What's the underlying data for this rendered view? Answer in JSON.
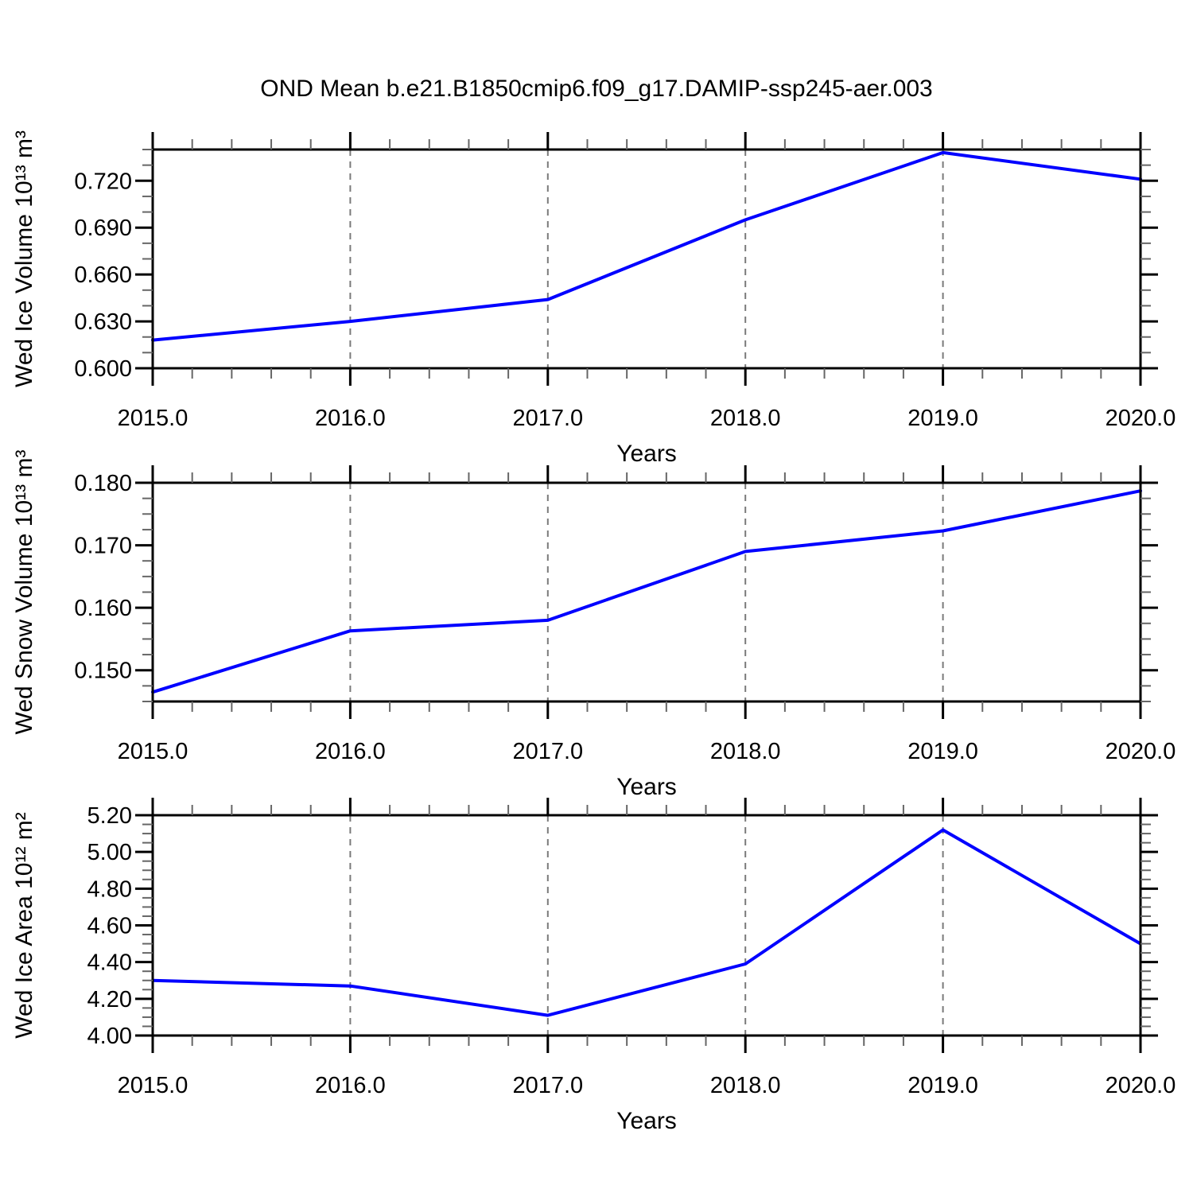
{
  "page": {
    "title": "OND Mean b.e21.B1850cmip6.f09_g17.DAMIP-ssp245-aer.003",
    "background_color": "#ffffff"
  },
  "style": {
    "line_color": "#0000ff",
    "frame_color": "#000000",
    "major_tick_color": "#000000",
    "minor_tick_color": "#666666",
    "gridline_color": "#7a7a7a",
    "text_color": "#000000"
  },
  "chart_data": [
    {
      "id": "wed-ice-volume",
      "type": "line",
      "ylabel": "Wed Ice Volume 10¹³ m³",
      "xlabel": "Years",
      "x": [
        2015.0,
        2016.0,
        2017.0,
        2018.0,
        2019.0,
        2020.0
      ],
      "values": [
        0.618,
        0.63,
        0.644,
        0.695,
        0.738,
        0.721
      ],
      "xlim": [
        2015.0,
        2020.0
      ],
      "ylim": [
        0.6,
        0.74
      ],
      "xticks": [
        2015.0,
        2016.0,
        2017.0,
        2018.0,
        2019.0,
        2020.0
      ],
      "xtick_labels": [
        "2015.0",
        "2016.0",
        "2017.0",
        "2018.0",
        "2019.0",
        "2020.0"
      ],
      "x_minor_step": 0.2,
      "yticks": [
        0.6,
        0.63,
        0.66,
        0.69,
        0.72
      ],
      "ytick_labels": [
        "0.600",
        "0.630",
        "0.660",
        "0.690",
        "0.720"
      ],
      "y_minor_step": 0.01,
      "grid_x_dashed": [
        2016.0,
        2017.0,
        2018.0,
        2019.0
      ],
      "legend": "none"
    },
    {
      "id": "wed-snow-volume",
      "type": "line",
      "ylabel": "Wed Snow Volume 10¹³ m³",
      "xlabel": "Years",
      "x": [
        2015.0,
        2016.0,
        2017.0,
        2018.0,
        2019.0,
        2020.0
      ],
      "values": [
        0.1465,
        0.1563,
        0.158,
        0.169,
        0.1723,
        0.1787
      ],
      "xlim": [
        2015.0,
        2020.0
      ],
      "ylim": [
        0.145,
        0.18
      ],
      "xticks": [
        2015.0,
        2016.0,
        2017.0,
        2018.0,
        2019.0,
        2020.0
      ],
      "xtick_labels": [
        "2015.0",
        "2016.0",
        "2017.0",
        "2018.0",
        "2019.0",
        "2020.0"
      ],
      "x_minor_step": 0.2,
      "yticks": [
        0.15,
        0.16,
        0.17,
        0.18
      ],
      "ytick_labels": [
        "0.150",
        "0.160",
        "0.170",
        "0.180"
      ],
      "y_minor_step": 0.0025,
      "grid_x_dashed": [
        2016.0,
        2017.0,
        2018.0,
        2019.0
      ],
      "legend": "none"
    },
    {
      "id": "wed-ice-area",
      "type": "line",
      "ylabel": "Wed Ice Area 10¹² m²",
      "xlabel": "Years",
      "x": [
        2015.0,
        2016.0,
        2017.0,
        2018.0,
        2019.0,
        2020.0
      ],
      "values": [
        4.3,
        4.27,
        4.11,
        4.39,
        5.12,
        4.5
      ],
      "xlim": [
        2015.0,
        2020.0
      ],
      "ylim": [
        4.0,
        5.2
      ],
      "xticks": [
        2015.0,
        2016.0,
        2017.0,
        2018.0,
        2019.0,
        2020.0
      ],
      "xtick_labels": [
        "2015.0",
        "2016.0",
        "2017.0",
        "2018.0",
        "2019.0",
        "2020.0"
      ],
      "x_minor_step": 0.2,
      "yticks": [
        4.0,
        4.2,
        4.4,
        4.6,
        4.8,
        5.0,
        5.2
      ],
      "ytick_labels": [
        "4.00",
        "4.20",
        "4.40",
        "4.60",
        "4.80",
        "5.00",
        "5.20"
      ],
      "y_minor_step": 0.05,
      "grid_x_dashed": [
        2016.0,
        2017.0,
        2018.0,
        2019.0
      ],
      "legend": "none"
    }
  ]
}
